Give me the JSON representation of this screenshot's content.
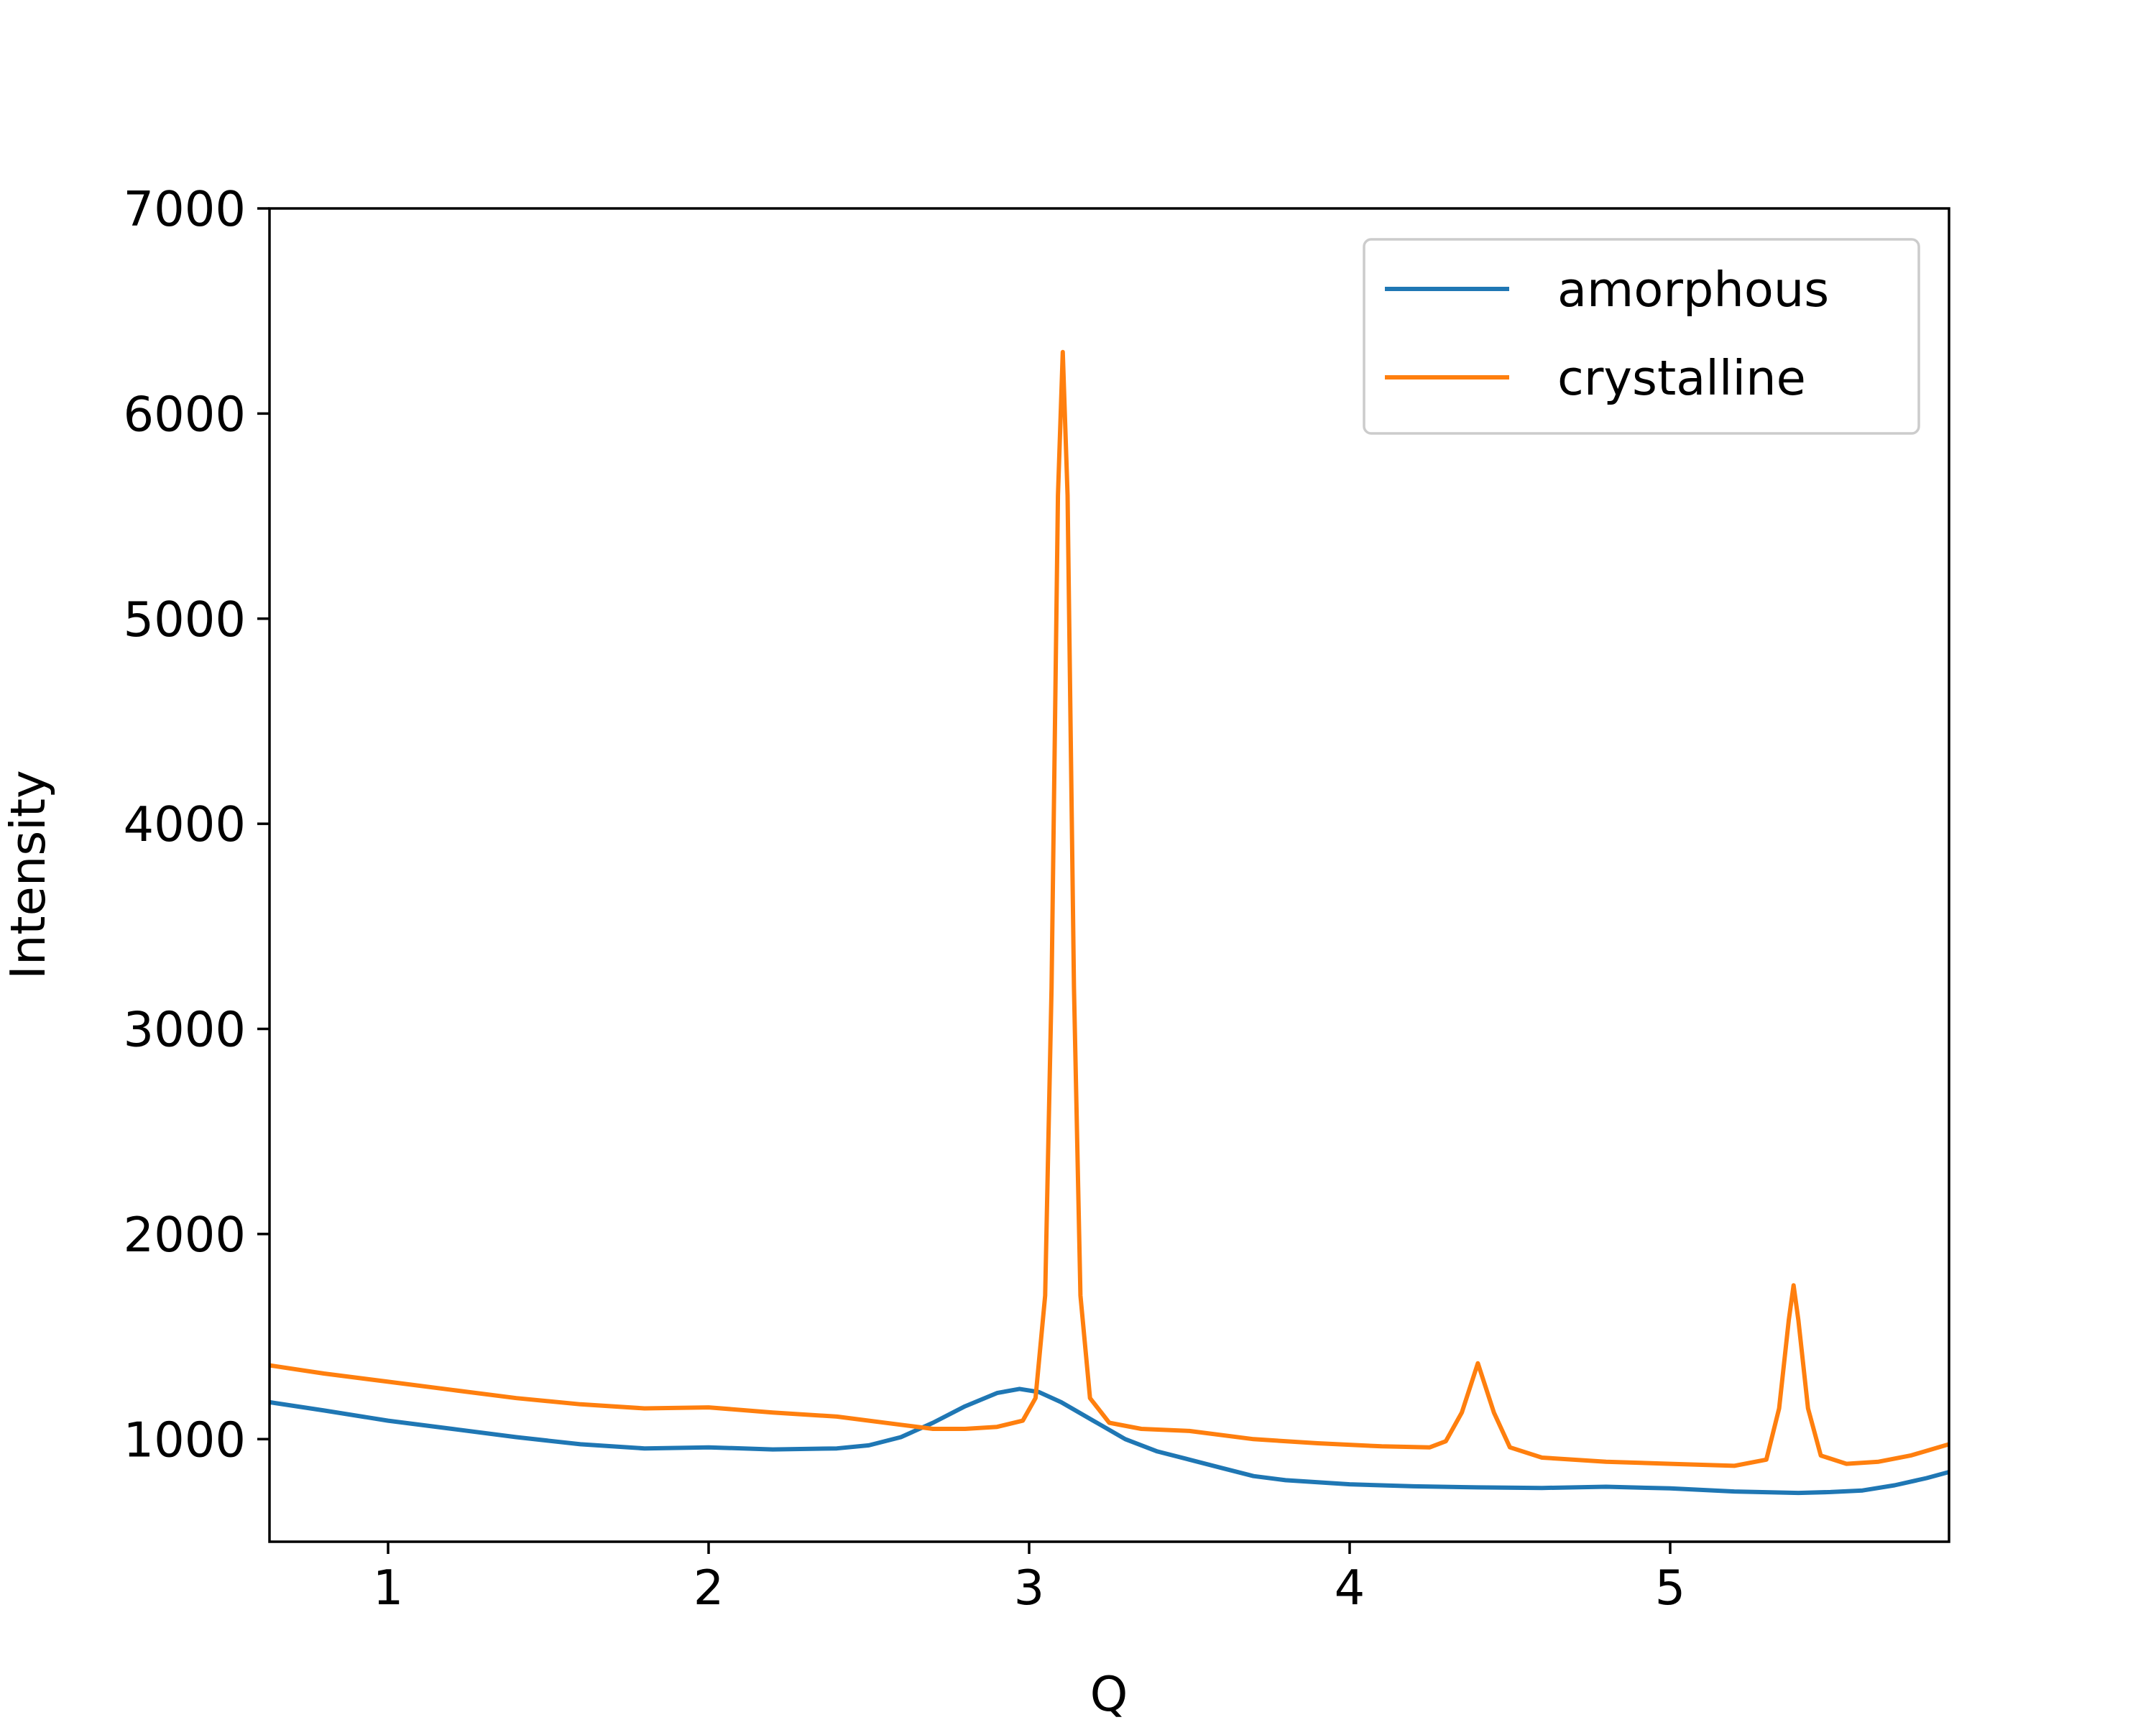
{
  "chart_data": {
    "type": "line",
    "title": "",
    "xlabel": "Q",
    "ylabel": "Intensity",
    "xlim": [
      0.63,
      5.87
    ],
    "ylim": [
      500,
      7000
    ],
    "xticks": [
      1,
      2,
      3,
      4,
      5
    ],
    "yticks": [
      1000,
      2000,
      3000,
      4000,
      5000,
      6000,
      7000
    ],
    "grid": false,
    "legend_position": "top-right",
    "series": [
      {
        "name": "amorphous",
        "color": "#1f77b4",
        "points": [
          [
            0.63,
            1180
          ],
          [
            0.8,
            1140
          ],
          [
            1.0,
            1090
          ],
          [
            1.2,
            1050
          ],
          [
            1.4,
            1010
          ],
          [
            1.6,
            975
          ],
          [
            1.8,
            955
          ],
          [
            2.0,
            960
          ],
          [
            2.2,
            950
          ],
          [
            2.4,
            955
          ],
          [
            2.5,
            970
          ],
          [
            2.6,
            1010
          ],
          [
            2.7,
            1080
          ],
          [
            2.8,
            1160
          ],
          [
            2.9,
            1225
          ],
          [
            2.97,
            1245
          ],
          [
            3.03,
            1230
          ],
          [
            3.1,
            1180
          ],
          [
            3.2,
            1090
          ],
          [
            3.3,
            1000
          ],
          [
            3.4,
            940
          ],
          [
            3.5,
            900
          ],
          [
            3.6,
            860
          ],
          [
            3.7,
            820
          ],
          [
            3.8,
            800
          ],
          [
            4.0,
            780
          ],
          [
            4.2,
            770
          ],
          [
            4.4,
            765
          ],
          [
            4.6,
            762
          ],
          [
            4.8,
            768
          ],
          [
            5.0,
            760
          ],
          [
            5.2,
            745
          ],
          [
            5.4,
            738
          ],
          [
            5.5,
            742
          ],
          [
            5.6,
            750
          ],
          [
            5.7,
            775
          ],
          [
            5.8,
            810
          ],
          [
            5.87,
            840
          ]
        ]
      },
      {
        "name": "crystalline",
        "color": "#ff7f0e",
        "points": [
          [
            0.63,
            1360
          ],
          [
            0.8,
            1320
          ],
          [
            1.0,
            1280
          ],
          [
            1.2,
            1240
          ],
          [
            1.4,
            1200
          ],
          [
            1.6,
            1170
          ],
          [
            1.8,
            1150
          ],
          [
            2.0,
            1155
          ],
          [
            2.2,
            1130
          ],
          [
            2.4,
            1110
          ],
          [
            2.6,
            1070
          ],
          [
            2.7,
            1050
          ],
          [
            2.8,
            1050
          ],
          [
            2.9,
            1060
          ],
          [
            2.98,
            1090
          ],
          [
            3.02,
            1200
          ],
          [
            3.05,
            1700
          ],
          [
            3.07,
            3200
          ],
          [
            3.09,
            5600
          ],
          [
            3.105,
            6300
          ],
          [
            3.12,
            5600
          ],
          [
            3.14,
            3200
          ],
          [
            3.16,
            1700
          ],
          [
            3.19,
            1200
          ],
          [
            3.25,
            1080
          ],
          [
            3.35,
            1050
          ],
          [
            3.5,
            1040
          ],
          [
            3.7,
            1000
          ],
          [
            3.9,
            980
          ],
          [
            4.1,
            965
          ],
          [
            4.25,
            960
          ],
          [
            4.3,
            990
          ],
          [
            4.35,
            1130
          ],
          [
            4.4,
            1370
          ],
          [
            4.45,
            1130
          ],
          [
            4.5,
            960
          ],
          [
            4.6,
            910
          ],
          [
            4.8,
            890
          ],
          [
            5.0,
            880
          ],
          [
            5.2,
            870
          ],
          [
            5.3,
            900
          ],
          [
            5.34,
            1150
          ],
          [
            5.37,
            1580
          ],
          [
            5.385,
            1750
          ],
          [
            5.4,
            1580
          ],
          [
            5.43,
            1150
          ],
          [
            5.47,
            920
          ],
          [
            5.55,
            880
          ],
          [
            5.65,
            890
          ],
          [
            5.75,
            920
          ],
          [
            5.87,
            975
          ]
        ]
      }
    ]
  }
}
